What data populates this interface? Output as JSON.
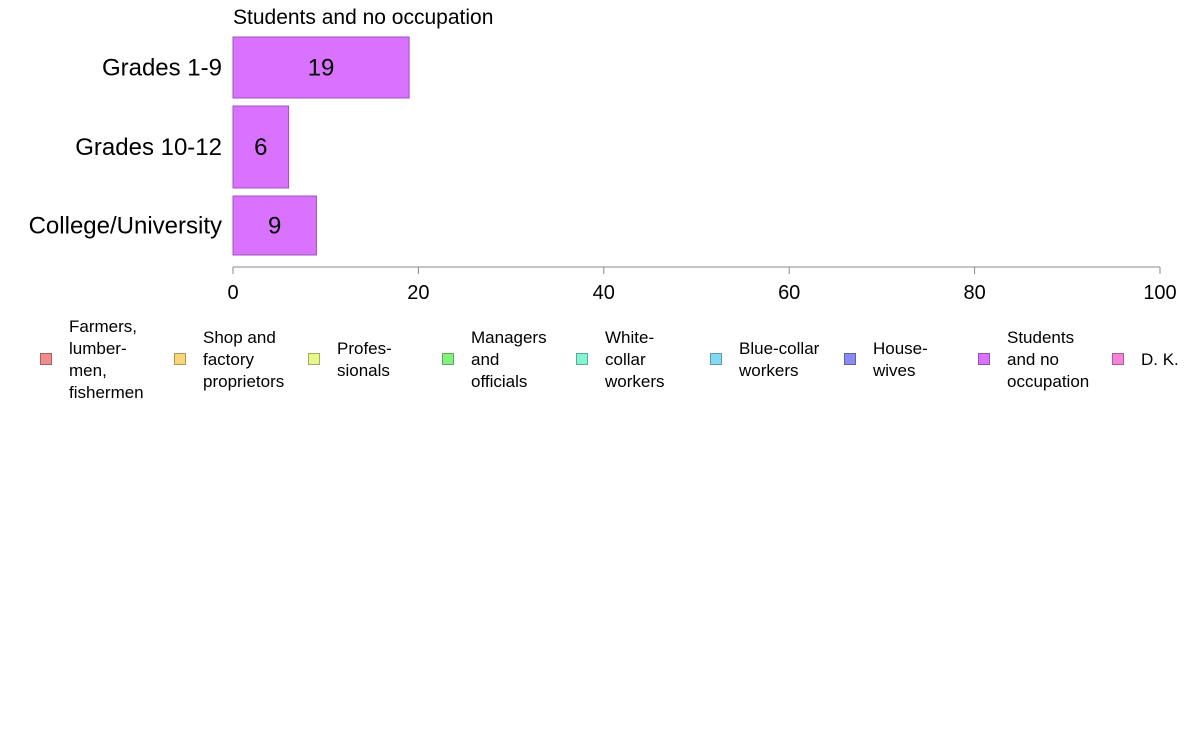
{
  "chart_data": {
    "type": "bar",
    "orientation": "horizontal",
    "title": "Students and no occupation",
    "categories": [
      "Grades 1-9",
      "Grades 10-12",
      "College/University"
    ],
    "series": [
      {
        "name": "Students and no occupation",
        "color": "#d973ff",
        "values": [
          19,
          6,
          9
        ]
      }
    ],
    "data_labels": [
      "19",
      "6",
      "9"
    ],
    "xlim": [
      0,
      100
    ],
    "x_ticks": [
      0,
      20,
      40,
      60,
      80,
      100
    ],
    "x_tick_labels": [
      "0",
      "20",
      "40",
      "60",
      "80",
      "100"
    ],
    "grid": false,
    "legend_placement": "bottom",
    "legend": [
      {
        "label": "Farmers,\nlumber-\nmen,\nfishermen",
        "color": "#f28b8b"
      },
      {
        "label": "Shop and\nfactory\nproprietors",
        "color": "#f7d77a"
      },
      {
        "label": "Profes-\nsionals",
        "color": "#e8f78a"
      },
      {
        "label": "Managers\nand\nofficials",
        "color": "#84f07e"
      },
      {
        "label": "White-\ncollar\nworkers",
        "color": "#84f5d4"
      },
      {
        "label": "Blue-collar\nworkers",
        "color": "#84d8f5"
      },
      {
        "label": "House-\nwives",
        "color": "#8a8af5"
      },
      {
        "label": "Students\nand no\noccupation",
        "color": "#d973ff"
      },
      {
        "label": "D. K.",
        "color": "#f584d8"
      }
    ]
  }
}
